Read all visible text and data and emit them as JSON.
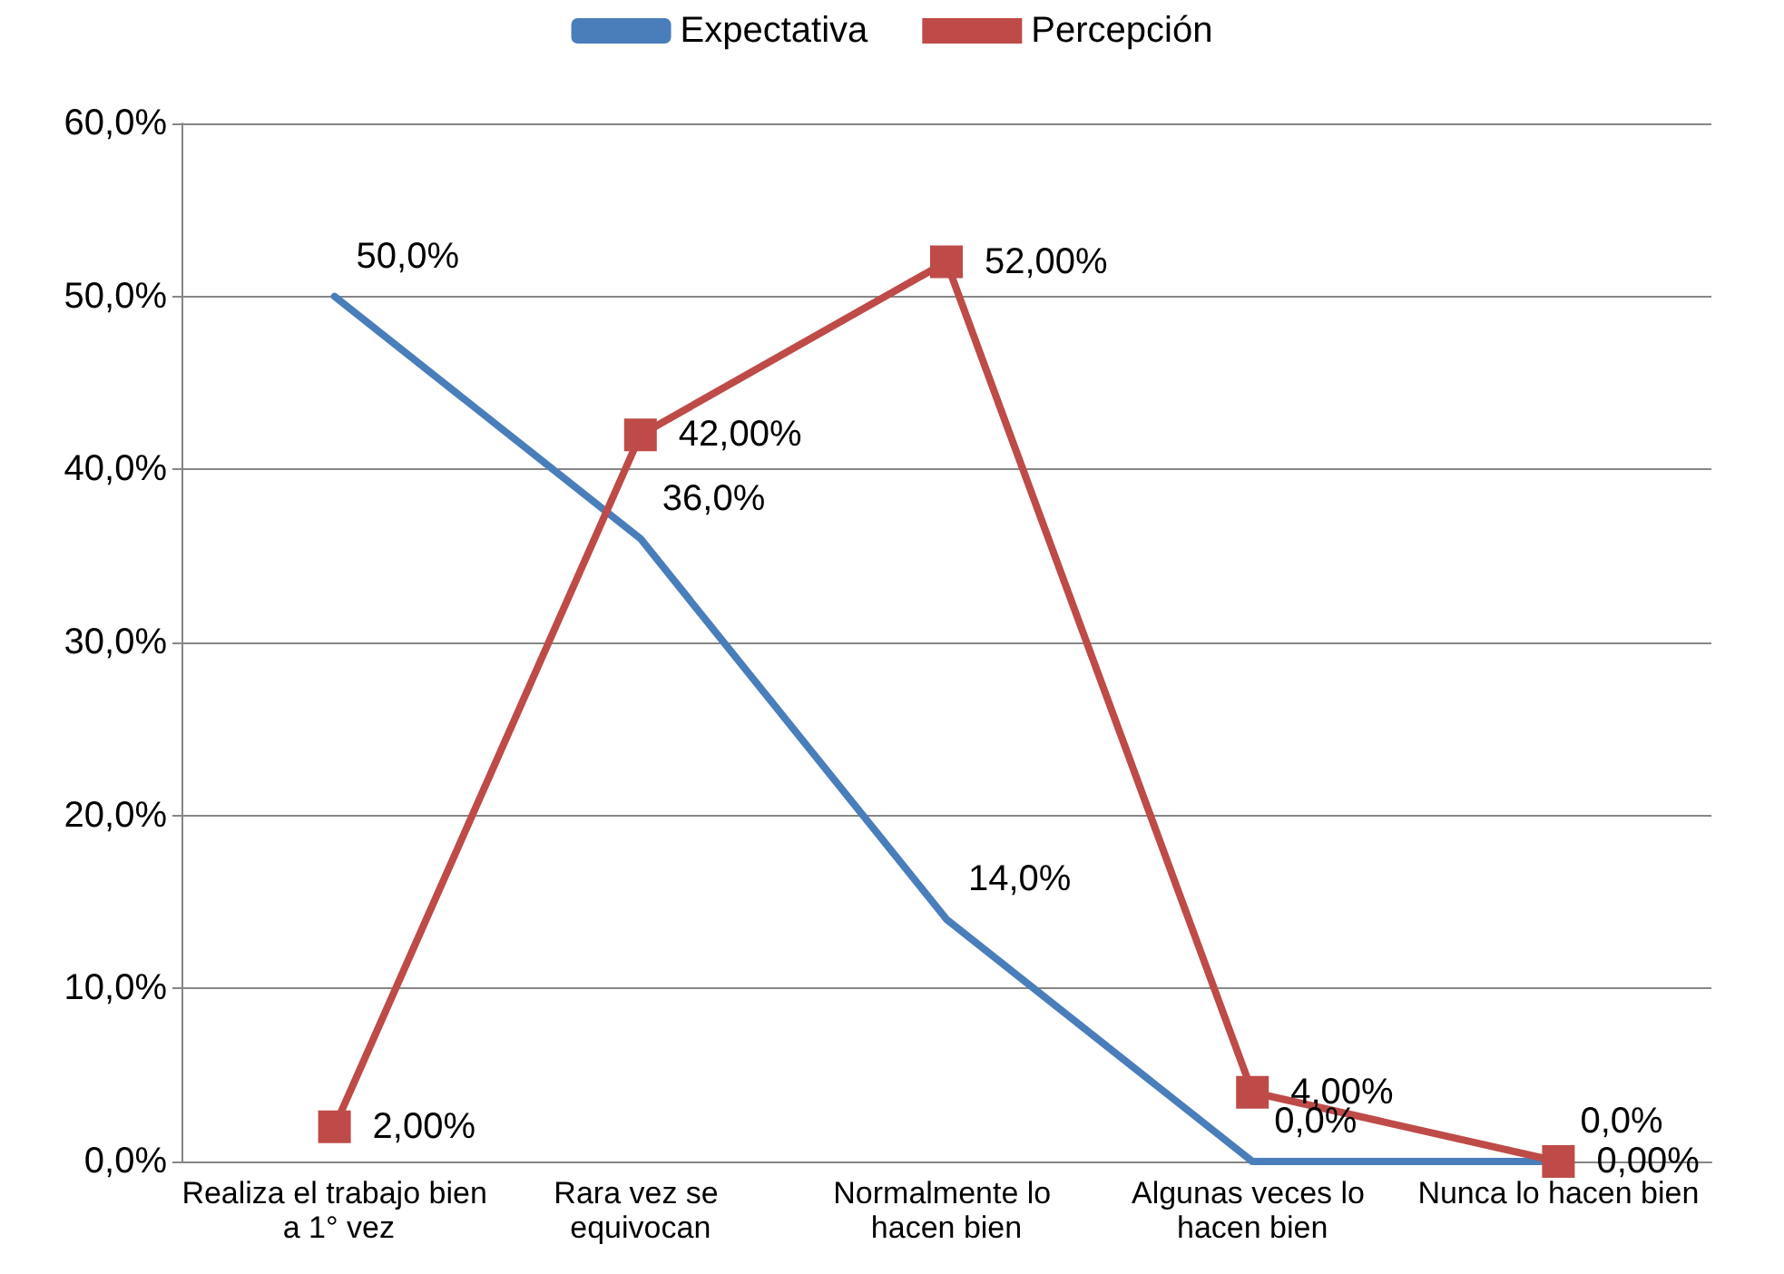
{
  "chart_data": {
    "type": "line",
    "categories": [
      "Realiza el trabajo bien a 1° vez",
      "Rara vez se equivocan",
      "Normalmente lo hacen bien",
      "Algunas veces lo hacen bien",
      "Nunca lo hacen bien"
    ],
    "series": [
      {
        "name": "Expectativa",
        "color": "#4a7ebb",
        "marker": "none",
        "values": [
          50,
          36,
          14,
          0,
          0
        ],
        "value_labels": [
          "50,0%",
          "36,0%",
          "14,0%",
          "0,0%",
          "0,0%"
        ]
      },
      {
        "name": "Percepción",
        "color": "#be4b48",
        "marker": "square",
        "values": [
          2,
          42,
          52,
          4,
          0
        ],
        "value_labels": [
          "2,00%",
          "42,00%",
          "52,00%",
          "4,00%",
          "0,00%"
        ]
      }
    ],
    "ylim": [
      0,
      60
    ],
    "yticks": [
      {
        "value": 0,
        "label": "0,0%"
      },
      {
        "value": 10,
        "label": "10,0%"
      },
      {
        "value": 20,
        "label": "20,0%"
      },
      {
        "value": 30,
        "label": "30,0%"
      },
      {
        "value": 40,
        "label": "40,0%"
      },
      {
        "value": 50,
        "label": "50,0%"
      },
      {
        "value": 60,
        "label": "60,0%"
      }
    ],
    "grid": "y",
    "legend": "top",
    "line_style": "solid"
  }
}
